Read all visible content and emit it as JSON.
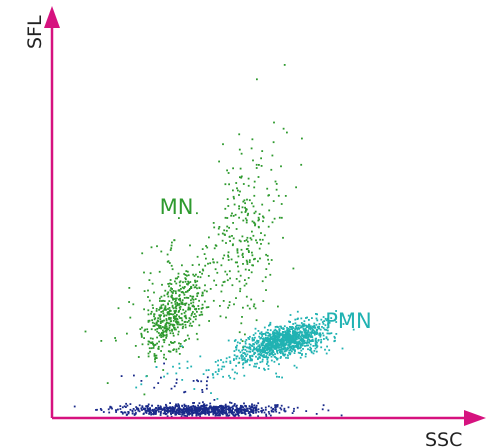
{
  "chart_data": {
    "type": "scatter",
    "title": "",
    "xlabel": "SSC",
    "ylabel": "SFL",
    "xlim": [
      0,
      100
    ],
    "ylim": [
      0,
      100
    ],
    "grid": false,
    "legend": "none",
    "axis_color": "#d6127f",
    "annotations": [
      {
        "text": "MN",
        "x": 26,
        "y": 52,
        "color": "#2e9a2e"
      },
      {
        "text": "PMN",
        "x": 66,
        "y": 23,
        "color": "#20b2b2"
      }
    ],
    "series": [
      {
        "color": "#2e9a2e",
        "clusters": [
          {
            "cx": 29,
            "cy": 26,
            "sx": 3.5,
            "sy": 5.5,
            "rho": 0.55,
            "n": 460
          },
          {
            "cx": 46,
            "cy": 48,
            "sx": 4.5,
            "sy": 12,
            "rho": 0.35,
            "n": 240
          },
          {
            "cx": 34,
            "cy": 34,
            "sx": 9,
            "sy": 9,
            "rho": 0.4,
            "n": 120
          }
        ]
      },
      {
        "color": "#20b2b2",
        "clusters": [
          {
            "cx": 56,
            "cy": 20,
            "sx": 5,
            "sy": 2.6,
            "rho": 0.55,
            "n": 1100
          },
          {
            "cx": 40,
            "cy": 13,
            "sx": 9,
            "sy": 3,
            "rho": 0.2,
            "n": 60
          }
        ]
      },
      {
        "color": "#1a2a8a",
        "clusters": [
          {
            "cx": 36,
            "cy": 2.2,
            "sx": 10,
            "sy": 0.7,
            "rho": 0,
            "n": 800
          },
          {
            "cx": 30,
            "cy": 9,
            "sx": 5,
            "sy": 2,
            "rho": 0,
            "n": 25
          }
        ]
      }
    ]
  }
}
